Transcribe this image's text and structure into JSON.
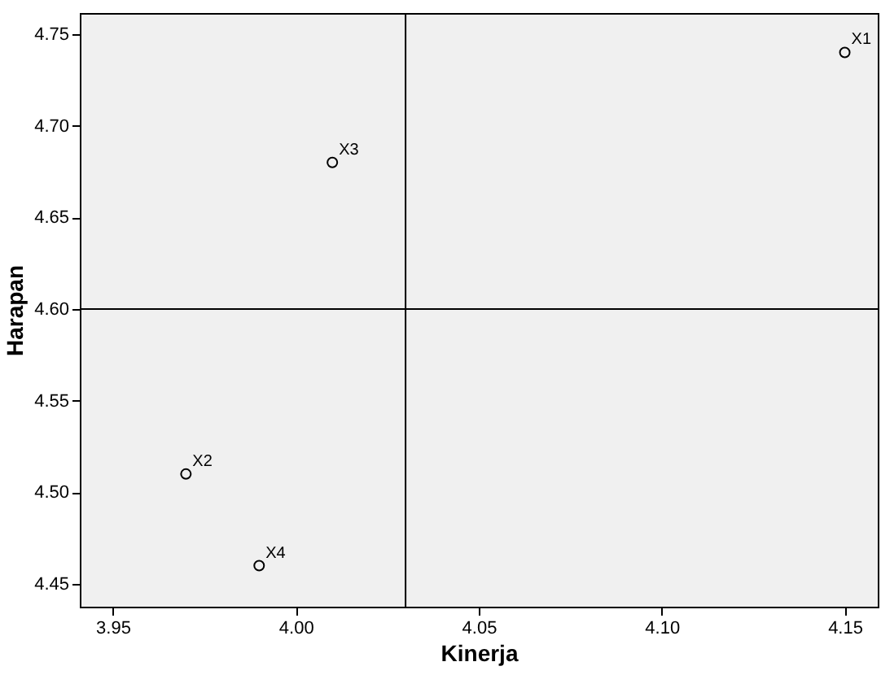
{
  "chart_data": {
    "type": "scatter",
    "xlabel": "Kinerja",
    "ylabel": "Harapan",
    "x": [
      4.15,
      3.97,
      4.01,
      3.99
    ],
    "series": [
      {
        "color": "#000000",
        "values": [
          4.74,
          4.51,
          4.68,
          4.46
        ]
      }
    ],
    "marker": "circle",
    "xlim": [
      3.941,
      4.159
    ],
    "ylim": [
      4.4376,
      4.7615
    ],
    "xticks": [
      3.95,
      {
        "value": 4,
        "label": "4.00"
      },
      4.05,
      {
        "value": 4.1,
        "label": "4.10"
      },
      4.15
    ],
    "yticks": [
      4.45,
      {
        "value": 4.5,
        "label": "4.50"
      },
      4.55,
      {
        "value": 4.6,
        "label": "4.60"
      },
      4.65,
      {
        "value": 4.7,
        "label": "4.70"
      },
      4.75
    ],
    "ref_lines": [
      {
        "axis": "x",
        "value": 4.03,
        "color": "#000000"
      },
      {
        "axis": "y",
        "value": 4.6,
        "color": "#000000"
      }
    ],
    "annotations": [
      {
        "text": "X1",
        "x": 4.15,
        "y": 4.74
      },
      {
        "text": "X2",
        "x": 3.97,
        "y": 4.51
      },
      {
        "text": "X3",
        "x": 4.01,
        "y": 4.68
      },
      {
        "text": "X4",
        "x": 3.99,
        "y": 4.46
      }
    ],
    "grid": false
  }
}
